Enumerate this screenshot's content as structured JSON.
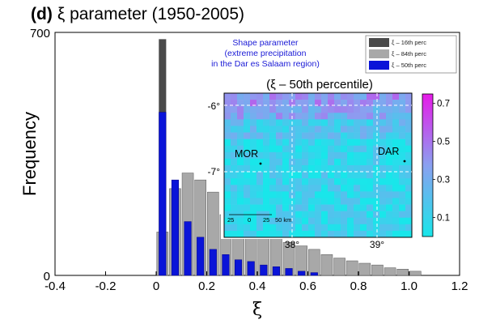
{
  "chart_data": {
    "type": "bar",
    "title_label": "(d)",
    "title": "ξ parameter (1950-2005)",
    "xlabel": "ξ",
    "ylabel": "Frequency",
    "xlim": [
      -0.4,
      1.2
    ],
    "ylim": [
      0,
      700
    ],
    "x_ticks": [
      "-0.4",
      "-0.2",
      "0",
      "0.2",
      "0.4",
      "0.6",
      "0.8",
      "1.0",
      "1.2"
    ],
    "y_ticks": [
      "0",
      "700"
    ],
    "bin_width": 0.05,
    "annotation": [
      "Shape parameter",
      "(extreme precipitation",
      "in the Dar es Salaam region)"
    ],
    "legend_position": "top-right",
    "series": [
      {
        "name": "ξ – 16th perc",
        "color": "#4a4a4a",
        "bins": [
          0.025
        ],
        "values": [
          680
        ]
      },
      {
        "name": "ξ – 84th perc",
        "color": "#a8a8a8",
        "bins": [
          0.025,
          0.075,
          0.125,
          0.175,
          0.225,
          0.275,
          0.325,
          0.375,
          0.425,
          0.475,
          0.525,
          0.575,
          0.625,
          0.675,
          0.725,
          0.775,
          0.825,
          0.875,
          0.925,
          0.975,
          1.025
        ],
        "values": [
          125,
          250,
          295,
          275,
          240,
          175,
          150,
          130,
          120,
          110,
          95,
          85,
          75,
          60,
          50,
          42,
          35,
          30,
          22,
          18,
          12
        ]
      },
      {
        "name": "ξ – 50th perc",
        "color": "#0a14d8",
        "bins": [
          0.025,
          0.075,
          0.125,
          0.175,
          0.225,
          0.275,
          0.325,
          0.375,
          0.425,
          0.475,
          0.525,
          0.575,
          0.625
        ],
        "values": [
          470,
          275,
          155,
          110,
          75,
          60,
          45,
          40,
          30,
          25,
          20,
          12,
          8
        ]
      }
    ],
    "inset": {
      "title": "(ξ – 50th percentile)",
      "lat_ticks": [
        "-6°",
        "-7°"
      ],
      "lon_ticks": [
        "38°",
        "39°"
      ],
      "places": [
        {
          "name": "MOR"
        },
        {
          "name": "DAR"
        }
      ],
      "scale_bar_labels": [
        "25",
        "0",
        "25",
        "50 km"
      ],
      "colorbar_ticks": [
        "0.1",
        "0.3",
        "0.5",
        "0.7"
      ],
      "colorbar_range": [
        0.0,
        0.75
      ],
      "colorbar_colors": [
        "#19e6ea",
        "#8aa0f0",
        "#e61be8"
      ]
    }
  }
}
